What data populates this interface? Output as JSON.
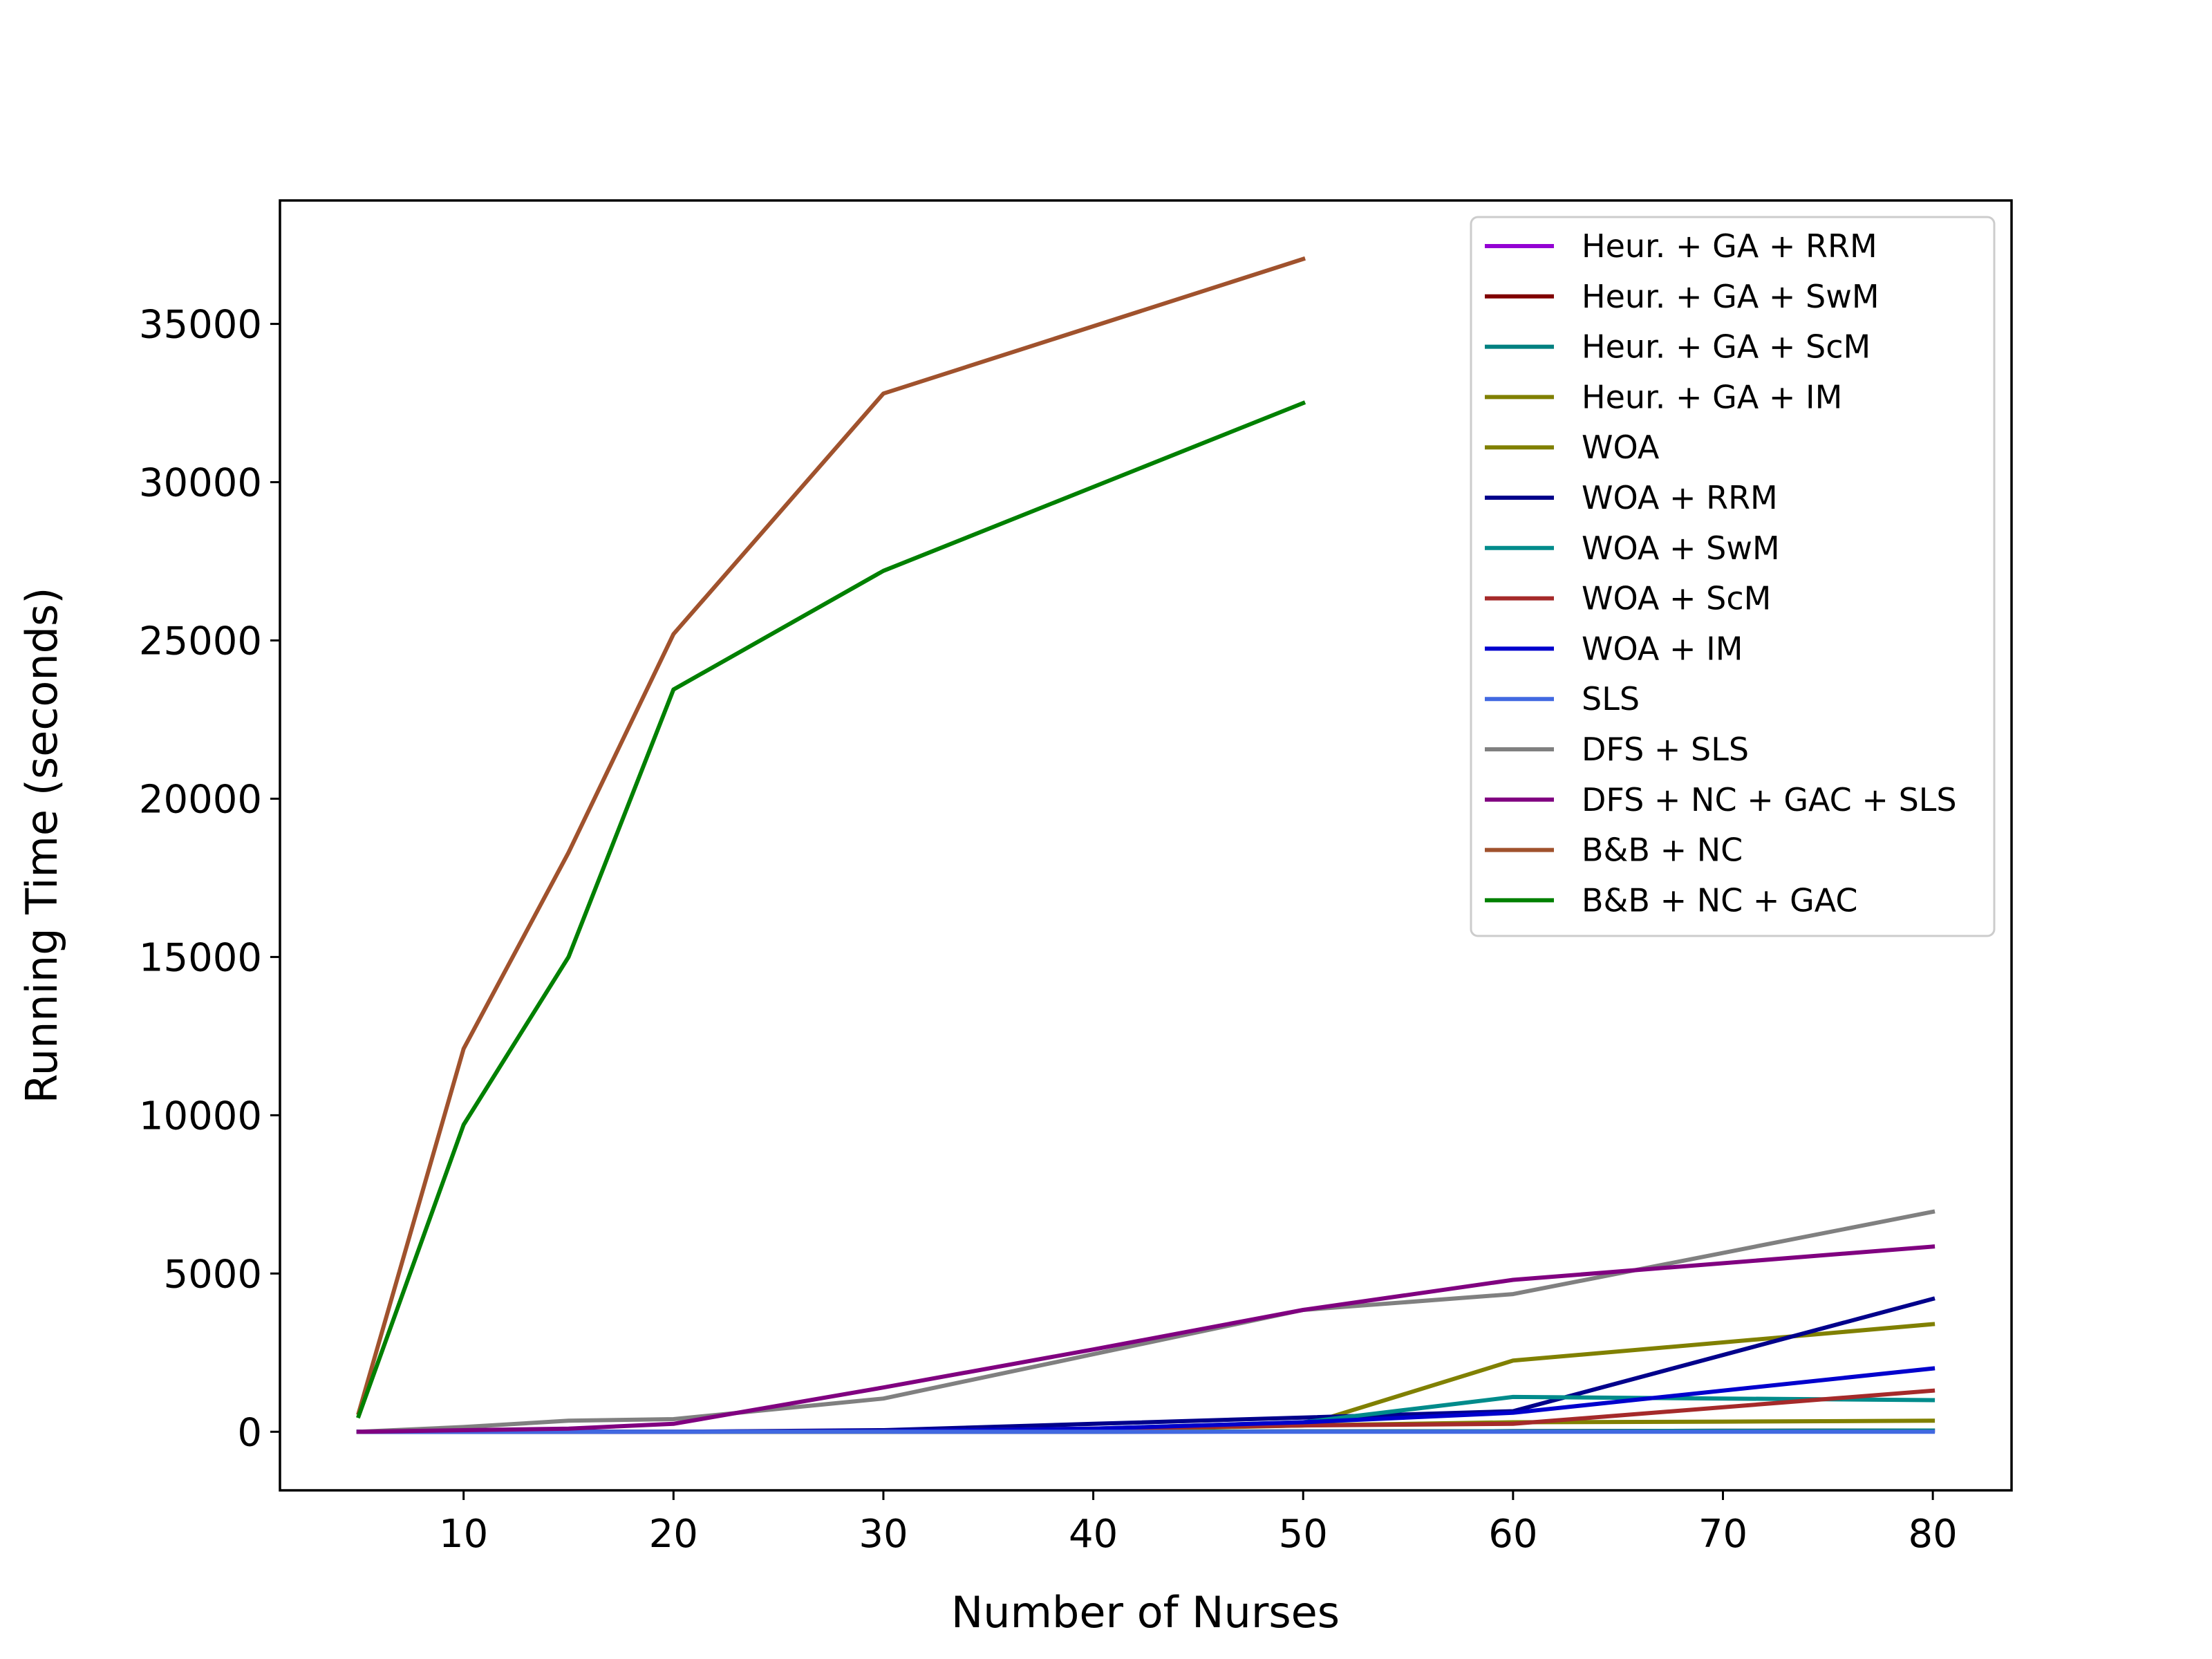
{
  "chart_data": {
    "type": "line",
    "title": "",
    "xlabel": "Number of Nurses",
    "ylabel": "Running Time (seconds)",
    "xlim": [
      1.25,
      83.75
    ],
    "ylim": [
      -1850,
      38900
    ],
    "xticks": [
      10,
      20,
      30,
      40,
      50,
      60,
      70,
      80
    ],
    "yticks": [
      0,
      5000,
      10000,
      15000,
      20000,
      25000,
      30000,
      35000
    ],
    "legend_position": "top-right",
    "series": [
      {
        "name": "Heur. + GA + RRM",
        "color": "#9400d3",
        "x": [
          5,
          10,
          15,
          20,
          30,
          40,
          50,
          60,
          70,
          80
        ],
        "y": [
          0,
          0,
          0,
          0,
          0,
          0,
          10,
          20,
          30,
          40
        ]
      },
      {
        "name": "Heur. + GA + SwM",
        "color": "#800000",
        "x": [
          5,
          10,
          15,
          20,
          30,
          40,
          50,
          60,
          70,
          80
        ],
        "y": [
          0,
          0,
          0,
          0,
          0,
          0,
          10,
          20,
          30,
          40
        ]
      },
      {
        "name": "Heur. + GA + ScM",
        "color": "#008080",
        "x": [
          5,
          10,
          15,
          20,
          30,
          40,
          50,
          60,
          70,
          80
        ],
        "y": [
          0,
          0,
          0,
          0,
          0,
          0,
          10,
          20,
          30,
          40
        ]
      },
      {
        "name": "Heur. + GA + IM",
        "color": "#808000",
        "x": [
          5,
          10,
          15,
          20,
          30,
          40,
          50,
          60,
          70,
          80
        ],
        "y": [
          0,
          0,
          0,
          0,
          0,
          50,
          200,
          300,
          320,
          350
        ]
      },
      {
        "name": "WOA",
        "color": "#808000",
        "x": [
          5,
          10,
          15,
          20,
          30,
          40,
          50,
          60,
          80
        ],
        "y": [
          0,
          0,
          0,
          0,
          0,
          100,
          200,
          2250,
          3400
        ]
      },
      {
        "name": "WOA + RRM",
        "color": "#00008b",
        "x": [
          5,
          10,
          15,
          20,
          30,
          40,
          50,
          60,
          80
        ],
        "y": [
          0,
          0,
          0,
          0,
          50,
          250,
          450,
          650,
          4200
        ]
      },
      {
        "name": "WOA + SwM",
        "color": "#008b8b",
        "x": [
          5,
          10,
          15,
          20,
          30,
          40,
          50,
          60,
          80
        ],
        "y": [
          0,
          0,
          0,
          0,
          20,
          100,
          300,
          1100,
          1000
        ]
      },
      {
        "name": "WOA + ScM",
        "color": "#a52a2a",
        "x": [
          5,
          10,
          15,
          20,
          30,
          40,
          50,
          60,
          80
        ],
        "y": [
          0,
          0,
          0,
          0,
          20,
          100,
          200,
          250,
          1300
        ]
      },
      {
        "name": "WOA + IM",
        "color": "#0000cd",
        "x": [
          5,
          10,
          15,
          20,
          30,
          40,
          50,
          60,
          80
        ],
        "y": [
          0,
          0,
          0,
          0,
          20,
          100,
          300,
          600,
          2000
        ]
      },
      {
        "name": "SLS",
        "color": "#4169e1",
        "x": [
          5,
          10,
          15,
          20,
          30,
          40,
          50,
          60,
          70,
          80
        ],
        "y": [
          0,
          0,
          0,
          0,
          0,
          0,
          0,
          0,
          0,
          0
        ]
      },
      {
        "name": "DFS + SLS",
        "color": "#808080",
        "x": [
          5,
          10,
          15,
          20,
          30,
          40,
          50,
          60,
          80
        ],
        "y": [
          0,
          150,
          350,
          400,
          1050,
          2450,
          3850,
          4350,
          6950
        ]
      },
      {
        "name": "DFS + NC + GAC + SLS",
        "color": "#800080",
        "x": [
          5,
          10,
          15,
          20,
          30,
          40,
          50,
          60,
          80
        ],
        "y": [
          0,
          50,
          100,
          250,
          1400,
          2600,
          3850,
          4800,
          5850
        ]
      },
      {
        "name": "B&B + NC",
        "color": "#a0522d",
        "x": [
          5,
          10,
          15,
          20,
          30,
          50
        ],
        "y": [
          600,
          12100,
          18300,
          25200,
          32800,
          37050
        ]
      },
      {
        "name": "B&B + NC + GAC",
        "color": "#008000",
        "x": [
          5,
          10,
          15,
          20,
          30,
          50
        ],
        "y": [
          500,
          9700,
          15000,
          23450,
          27200,
          32500
        ]
      }
    ]
  }
}
